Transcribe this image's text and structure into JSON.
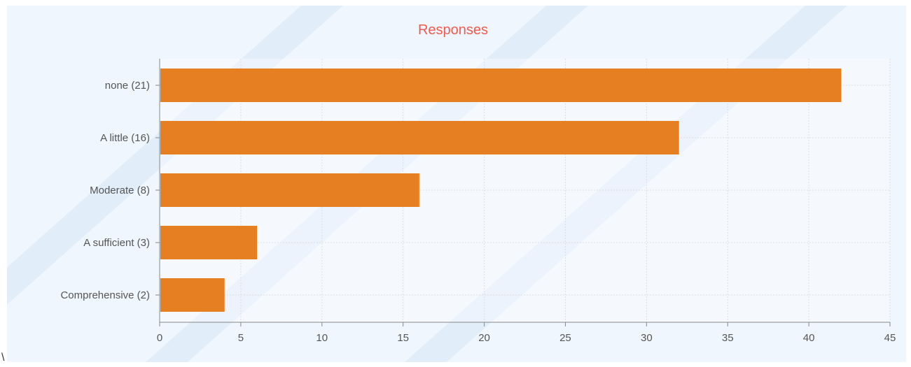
{
  "stray_text": "\\",
  "chart_data": {
    "type": "bar",
    "orientation": "horizontal",
    "title": "Responses",
    "categories": [
      "none (21)",
      "A little (16)",
      "Moderate (8)",
      "A sufficient (3)",
      "Comprehensive (2)"
    ],
    "values": [
      42,
      32,
      16,
      6,
      4
    ],
    "xlim": [
      0,
      45
    ],
    "xticks": [
      0,
      5,
      10,
      15,
      20,
      25,
      30,
      35,
      40,
      45
    ],
    "grid": true,
    "legend": "none",
    "colors": {
      "bar": "#e67e22",
      "title": "#f05b4f",
      "axis": "#888888",
      "grid": "#dddddd",
      "background": "#f0f6fd",
      "stripe": "#e2edfa",
      "plot_bg": "#ffffff"
    }
  }
}
